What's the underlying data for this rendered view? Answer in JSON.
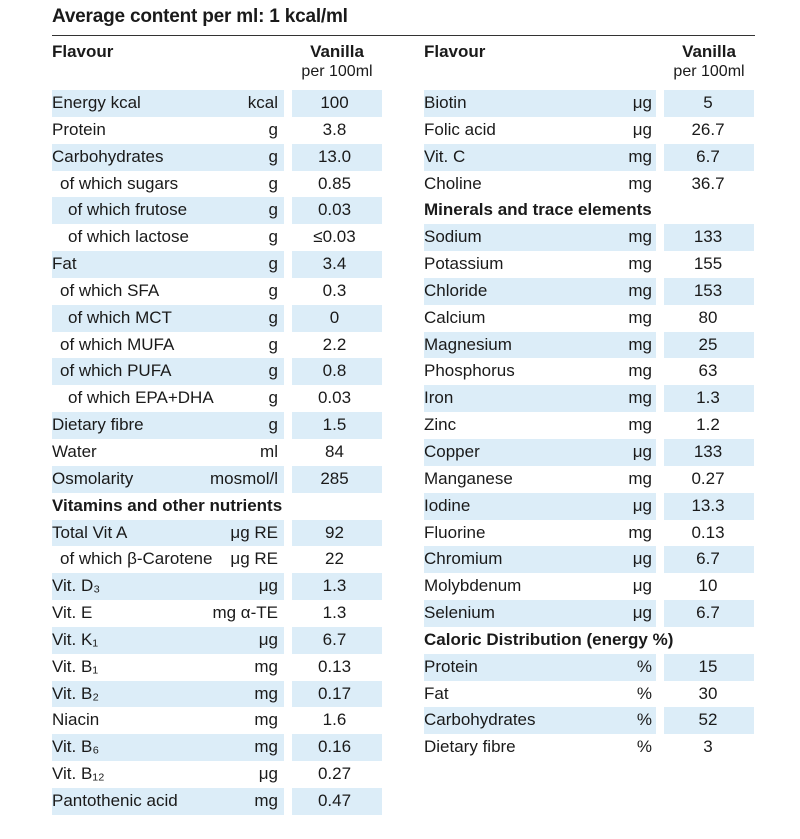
{
  "title": "Average content per ml: 1 kcal/ml",
  "header": {
    "flavour_label": "Flavour",
    "vanilla_label": "Vanilla",
    "per_label": "per 100ml"
  },
  "left_rows": [
    {
      "label": "Energy kcal",
      "unit": "kcal",
      "value": "100",
      "shade": true,
      "indent": 0
    },
    {
      "label": "Protein",
      "unit": "g",
      "value": "3.8",
      "shade": false,
      "indent": 0
    },
    {
      "label": "Carbohydrates",
      "unit": "g",
      "value": "13.0",
      "shade": true,
      "indent": 0
    },
    {
      "label": "of which sugars",
      "unit": "g",
      "value": "0.85",
      "shade": false,
      "indent": 1
    },
    {
      "label": "of which frutose",
      "unit": "g",
      "value": "0.03",
      "shade": true,
      "indent": 2
    },
    {
      "label": "of which lactose",
      "unit": "g",
      "value": "≤0.03",
      "shade": false,
      "indent": 2
    },
    {
      "label": "Fat",
      "unit": "g",
      "value": "3.4",
      "shade": true,
      "indent": 0
    },
    {
      "label": "of which SFA",
      "unit": "g",
      "value": "0.3",
      "shade": false,
      "indent": 1
    },
    {
      "label": "of which MCT",
      "unit": "g",
      "value": "0",
      "shade": true,
      "indent": 2
    },
    {
      "label": "of which MUFA",
      "unit": "g",
      "value": "2.2",
      "shade": false,
      "indent": 1
    },
    {
      "label": "of which PUFA",
      "unit": "g",
      "value": "0.8",
      "shade": true,
      "indent": 1
    },
    {
      "label": "of which EPA+DHA",
      "unit": "g",
      "value": "0.03",
      "shade": false,
      "indent": 2
    },
    {
      "label": "Dietary fibre",
      "unit": "g",
      "value": "1.5",
      "shade": true,
      "indent": 0
    },
    {
      "label": "Water",
      "unit": "ml",
      "value": "84",
      "shade": false,
      "indent": 0
    },
    {
      "label": "Osmolarity",
      "unit": "mosmol/l",
      "value": "285",
      "shade": true,
      "indent": 0
    },
    {
      "label": "Vitamins and other nutrients",
      "section": true
    },
    {
      "label": "Total Vit A",
      "unit": "μg RE",
      "value": "92",
      "shade": true,
      "indent": 0
    },
    {
      "label": "of which β-Carotene",
      "unit": "μg RE",
      "value": "22",
      "shade": false,
      "indent": 1
    },
    {
      "label": "Vit. D₃",
      "unit": "μg",
      "value": "1.3",
      "shade": true,
      "indent": 0
    },
    {
      "label": "Vit. E",
      "unit": "mg α-TE",
      "value": "1.3",
      "shade": false,
      "indent": 0
    },
    {
      "label": "Vit. K₁",
      "unit": "μg",
      "value": "6.7",
      "shade": true,
      "indent": 0
    },
    {
      "label": "Vit. B₁",
      "unit": "mg",
      "value": "0.13",
      "shade": false,
      "indent": 0
    },
    {
      "label": "Vit. B₂",
      "unit": "mg",
      "value": "0.17",
      "shade": true,
      "indent": 0
    },
    {
      "label": "Niacin",
      "unit": "mg",
      "value": "1.6",
      "shade": false,
      "indent": 0
    },
    {
      "label": "Vit. B₆",
      "unit": "mg",
      "value": "0.16",
      "shade": true,
      "indent": 0
    },
    {
      "label": "Vit. B₁₂",
      "unit": "μg",
      "value": "0.27",
      "shade": false,
      "indent": 0
    },
    {
      "label": "Pantothenic acid",
      "unit": "mg",
      "value": "0.47",
      "shade": true,
      "indent": 0
    }
  ],
  "right_rows": [
    {
      "label": "Biotin",
      "unit": "μg",
      "value": "5",
      "shade": true,
      "indent": 0
    },
    {
      "label": "Folic acid",
      "unit": "μg",
      "value": "26.7",
      "shade": false,
      "indent": 0
    },
    {
      "label": "Vit. C",
      "unit": "mg",
      "value": "6.7",
      "shade": true,
      "indent": 0
    },
    {
      "label": "Choline",
      "unit": "mg",
      "value": "36.7",
      "shade": false,
      "indent": 0
    },
    {
      "label": "Minerals and trace elements",
      "section": true
    },
    {
      "label": "Sodium",
      "unit": "mg",
      "value": "133",
      "shade": true,
      "indent": 0
    },
    {
      "label": "Potassium",
      "unit": "mg",
      "value": "155",
      "shade": false,
      "indent": 0
    },
    {
      "label": "Chloride",
      "unit": "mg",
      "value": "153",
      "shade": true,
      "indent": 0
    },
    {
      "label": "Calcium",
      "unit": "mg",
      "value": "80",
      "shade": false,
      "indent": 0
    },
    {
      "label": "Magnesium",
      "unit": "mg",
      "value": "25",
      "shade": true,
      "indent": 0
    },
    {
      "label": "Phosphorus",
      "unit": "mg",
      "value": "63",
      "shade": false,
      "indent": 0
    },
    {
      "label": "Iron",
      "unit": "mg",
      "value": "1.3",
      "shade": true,
      "indent": 0
    },
    {
      "label": "Zinc",
      "unit": "mg",
      "value": "1.2",
      "shade": false,
      "indent": 0
    },
    {
      "label": "Copper",
      "unit": "μg",
      "value": "133",
      "shade": true,
      "indent": 0
    },
    {
      "label": "Manganese",
      "unit": "mg",
      "value": "0.27",
      "shade": false,
      "indent": 0
    },
    {
      "label": "Iodine",
      "unit": "μg",
      "value": "13.3",
      "shade": true,
      "indent": 0
    },
    {
      "label": "Fluorine",
      "unit": "mg",
      "value": "0.13",
      "shade": false,
      "indent": 0
    },
    {
      "label": "Chromium",
      "unit": "μg",
      "value": "6.7",
      "shade": true,
      "indent": 0
    },
    {
      "label": "Molybdenum",
      "unit": "μg",
      "value": "10",
      "shade": false,
      "indent": 0
    },
    {
      "label": "Selenium",
      "unit": "μg",
      "value": "6.7",
      "shade": true,
      "indent": 0
    },
    {
      "label": "Caloric Distribution (energy %)",
      "section": true
    },
    {
      "label": "Protein",
      "unit": "%",
      "value": "15",
      "shade": true,
      "indent": 0
    },
    {
      "label": "Fat",
      "unit": "%",
      "value": "30",
      "shade": false,
      "indent": 0
    },
    {
      "label": "Carbohydrates",
      "unit": "%",
      "value": "52",
      "shade": true,
      "indent": 0
    },
    {
      "label": "Dietary fibre",
      "unit": "%",
      "value": "3",
      "shade": false,
      "indent": 0
    }
  ],
  "colors": {
    "shade": "#dcedf8",
    "text": "#1a1a1a"
  }
}
